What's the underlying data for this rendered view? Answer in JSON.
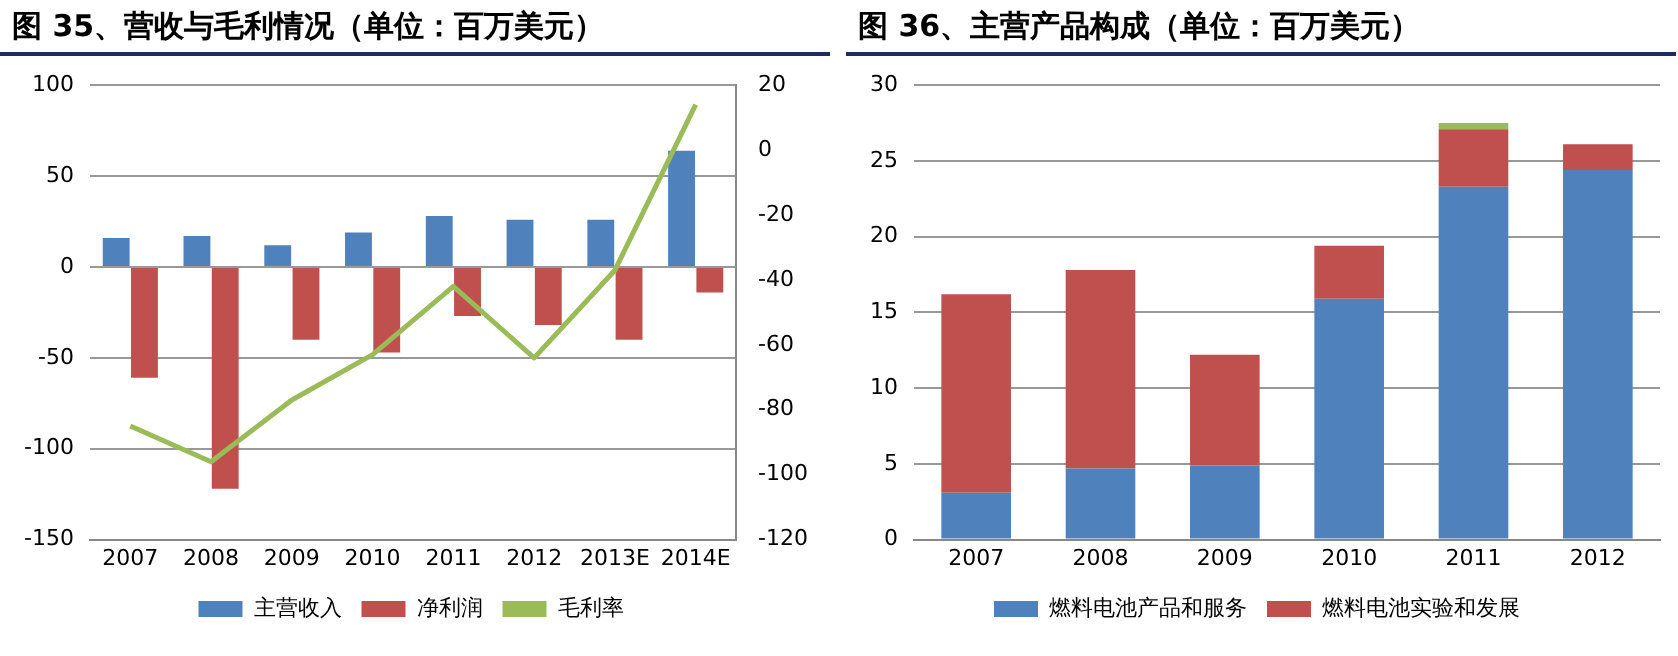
{
  "chart_data": [
    {
      "type": "bar",
      "title": "图 35、营收与毛利情况（单位：百万美元）",
      "categories": [
        "2007",
        "2008",
        "2009",
        "2010",
        "2011",
        "2012",
        "2013E",
        "2014E"
      ],
      "series": [
        {
          "name": "主营收入",
          "color": "#4f81bd",
          "values": [
            16,
            17,
            12,
            19,
            28,
            26,
            26,
            64
          ]
        },
        {
          "name": "净利润",
          "color": "#c0504d",
          "values": [
            -61,
            -122,
            -40,
            -47,
            -27,
            -32,
            -40,
            -14
          ]
        },
        {
          "name": "毛利率",
          "type": "line",
          "axis": "y2",
          "color": "#9bbb59",
          "values": [
            -85,
            -96,
            -77,
            -63,
            -42,
            -64,
            -37,
            14
          ]
        }
      ],
      "ylim": [
        -150,
        100
      ],
      "yticks": [
        -150,
        -100,
        -50,
        0,
        50,
        100
      ],
      "y2lim": [
        -120,
        20
      ],
      "y2ticks": [
        -120,
        -100,
        -80,
        -60,
        -40,
        -20,
        0,
        20
      ],
      "grid": "y",
      "legend": "bottom",
      "marker": "none"
    },
    {
      "type": "bar",
      "title": "图 36、主营产品构成（单位：百万美元）",
      "categories": [
        "2007",
        "2008",
        "2009",
        "2010",
        "2011",
        "2012"
      ],
      "stacked": true,
      "series": [
        {
          "name": "燃料电池产品和服务",
          "color": "#4f81bd",
          "values": [
            3.1,
            4.7,
            4.9,
            15.9,
            23.3,
            24.4
          ]
        },
        {
          "name": "燃料电池实验和发展",
          "color": "#c0504d",
          "values": [
            13.1,
            13.1,
            7.3,
            3.5,
            3.8,
            1.7
          ]
        },
        {
          "color": "#9bbb59",
          "values": [
            null,
            null,
            null,
            null,
            0.4,
            null
          ]
        }
      ],
      "ylim": [
        0,
        30
      ],
      "yticks": [
        0,
        5,
        10,
        15,
        20,
        25,
        30
      ],
      "grid": "y",
      "legend": "bottom"
    }
  ]
}
